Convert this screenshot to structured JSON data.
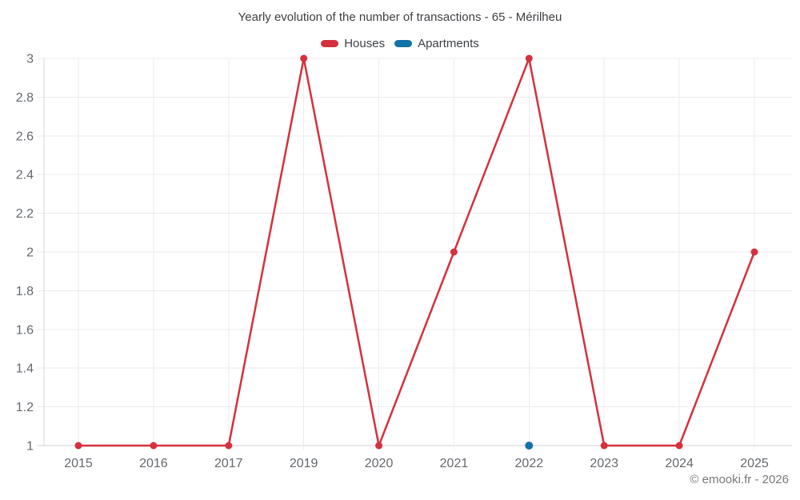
{
  "chart_data": {
    "type": "line",
    "title": "Yearly evolution of the number of transactions - 65 - Mérilheu",
    "categories": [
      "2015",
      "2016",
      "2017",
      "2019",
      "2020",
      "2021",
      "2022",
      "2023",
      "2024",
      "2025"
    ],
    "series": [
      {
        "name": "Houses",
        "color": "#d5303e",
        "values": [
          1,
          1,
          1,
          3,
          1,
          2,
          3,
          1,
          1,
          2
        ]
      },
      {
        "name": "Apartments",
        "color": "#1272a5",
        "values": [
          null,
          null,
          null,
          null,
          null,
          null,
          1,
          null,
          null,
          null
        ]
      }
    ],
    "xlabel": "",
    "ylabel": "",
    "ylim": [
      1,
      3
    ],
    "yticks": [
      1,
      1.2,
      1.4,
      1.6,
      1.8,
      2,
      2.2,
      2.4,
      2.6,
      2.8,
      3
    ],
    "grid": true,
    "legend_position": "top"
  },
  "footer": {
    "copyright": "© emooki.fr - 2026"
  },
  "colors": {
    "gridline": "#ededed",
    "baseline": "#d2d2d2",
    "y_axis_line": "#dadada",
    "tick_text": "#65696e",
    "title_text": "#3e4044",
    "footer_text": "#77797c"
  }
}
